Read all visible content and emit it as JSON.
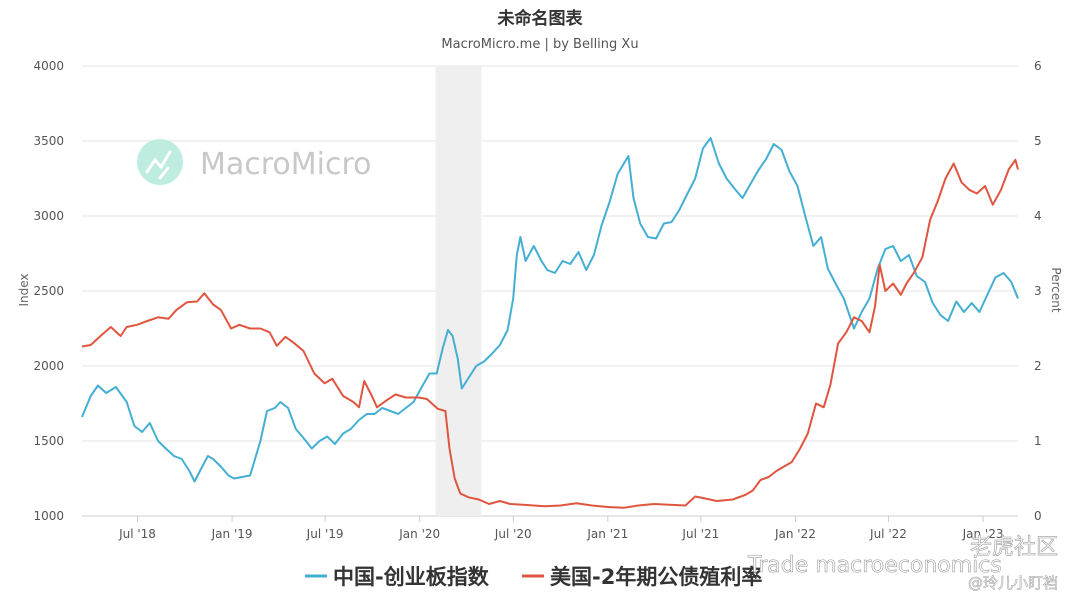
{
  "chart_data": {
    "type": "line",
    "title": "未命名图表",
    "subtitle": "MacroMicro.me | by Belling Xu",
    "watermark": "MacroMicro",
    "watermark_bottom": "Trade macroeconomics",
    "watermark_brand": "老虎社区",
    "watermark_user": "@玲儿小盯裆",
    "y_left": {
      "label": "Index",
      "lim": [
        1000,
        4000
      ],
      "ticks": [
        "1000",
        "1500",
        "2000",
        "2500",
        "3000",
        "3500",
        "4000"
      ]
    },
    "y_right": {
      "label": "Percent",
      "lim": [
        0,
        6
      ],
      "ticks": [
        "0",
        "1",
        "2",
        "3",
        "4",
        "5",
        "6"
      ]
    },
    "x_lim": [
      "2018-03-15",
      "2023-03-10"
    ],
    "x_ticks": [
      {
        "date": "2018-07-01",
        "label": "Jul '18"
      },
      {
        "date": "2019-01-01",
        "label": "Jan '19"
      },
      {
        "date": "2019-07-01",
        "label": "Jul '19"
      },
      {
        "date": "2020-01-01",
        "label": "Jan '20"
      },
      {
        "date": "2020-07-01",
        "label": "Jul '20"
      },
      {
        "date": "2021-01-01",
        "label": "Jan '21"
      },
      {
        "date": "2021-07-01",
        "label": "Jul '21"
      },
      {
        "date": "2022-01-01",
        "label": "Jan '22"
      },
      {
        "date": "2022-07-01",
        "label": "Jul '22"
      },
      {
        "date": "2023-01-01",
        "label": "Jan '23"
      }
    ],
    "shaded_range": [
      "2020-02-01",
      "2020-04-30"
    ],
    "grid": true,
    "legend_position": "bottom",
    "series": [
      {
        "name": "中国-创业板指数",
        "axis": "left",
        "color": "#45aed3",
        "points": [
          [
            "2018-03-15",
            1660
          ],
          [
            "2018-04-01",
            1800
          ],
          [
            "2018-04-15",
            1870
          ],
          [
            "2018-05-01",
            1820
          ],
          [
            "2018-05-20",
            1860
          ],
          [
            "2018-06-10",
            1760
          ],
          [
            "2018-06-25",
            1600
          ],
          [
            "2018-07-10",
            1560
          ],
          [
            "2018-07-25",
            1620
          ],
          [
            "2018-08-10",
            1500
          ],
          [
            "2018-08-25",
            1450
          ],
          [
            "2018-09-10",
            1400
          ],
          [
            "2018-09-25",
            1380
          ],
          [
            "2018-10-10",
            1300
          ],
          [
            "2018-10-20",
            1230
          ],
          [
            "2018-11-01",
            1310
          ],
          [
            "2018-11-15",
            1400
          ],
          [
            "2018-11-25",
            1380
          ],
          [
            "2018-12-10",
            1330
          ],
          [
            "2018-12-25",
            1270
          ],
          [
            "2019-01-05",
            1250
          ],
          [
            "2019-01-20",
            1260
          ],
          [
            "2019-02-05",
            1270
          ],
          [
            "2019-02-25",
            1500
          ],
          [
            "2019-03-10",
            1700
          ],
          [
            "2019-03-25",
            1720
          ],
          [
            "2019-04-05",
            1760
          ],
          [
            "2019-04-20",
            1720
          ],
          [
            "2019-05-05",
            1580
          ],
          [
            "2019-05-20",
            1520
          ],
          [
            "2019-06-05",
            1450
          ],
          [
            "2019-06-20",
            1500
          ],
          [
            "2019-07-05",
            1530
          ],
          [
            "2019-07-20",
            1480
          ],
          [
            "2019-08-05",
            1550
          ],
          [
            "2019-08-20",
            1580
          ],
          [
            "2019-09-05",
            1640
          ],
          [
            "2019-09-20",
            1680
          ],
          [
            "2019-10-05",
            1680
          ],
          [
            "2019-10-20",
            1720
          ],
          [
            "2019-11-05",
            1700
          ],
          [
            "2019-11-20",
            1680
          ],
          [
            "2019-12-05",
            1720
          ],
          [
            "2019-12-20",
            1760
          ],
          [
            "2020-01-05",
            1860
          ],
          [
            "2020-01-20",
            1950
          ],
          [
            "2020-02-03",
            1950
          ],
          [
            "2020-02-15",
            2120
          ],
          [
            "2020-02-25",
            2240
          ],
          [
            "2020-03-05",
            2200
          ],
          [
            "2020-03-15",
            2050
          ],
          [
            "2020-03-23",
            1850
          ],
          [
            "2020-04-05",
            1920
          ],
          [
            "2020-04-20",
            2000
          ],
          [
            "2020-05-05",
            2030
          ],
          [
            "2020-05-20",
            2080
          ],
          [
            "2020-06-05",
            2140
          ],
          [
            "2020-06-20",
            2240
          ],
          [
            "2020-07-01",
            2450
          ],
          [
            "2020-07-08",
            2740
          ],
          [
            "2020-07-15",
            2860
          ],
          [
            "2020-07-25",
            2700
          ],
          [
            "2020-08-10",
            2800
          ],
          [
            "2020-08-25",
            2700
          ],
          [
            "2020-09-05",
            2640
          ],
          [
            "2020-09-20",
            2620
          ],
          [
            "2020-10-05",
            2700
          ],
          [
            "2020-10-20",
            2680
          ],
          [
            "2020-11-05",
            2760
          ],
          [
            "2020-11-20",
            2640
          ],
          [
            "2020-12-05",
            2740
          ],
          [
            "2020-12-20",
            2940
          ],
          [
            "2021-01-05",
            3100
          ],
          [
            "2021-01-20",
            3280
          ],
          [
            "2021-02-10",
            3400
          ],
          [
            "2021-02-20",
            3120
          ],
          [
            "2021-03-05",
            2950
          ],
          [
            "2021-03-20",
            2860
          ],
          [
            "2021-04-05",
            2850
          ],
          [
            "2021-04-20",
            2950
          ],
          [
            "2021-05-05",
            2960
          ],
          [
            "2021-05-20",
            3040
          ],
          [
            "2021-06-05",
            3150
          ],
          [
            "2021-06-20",
            3250
          ],
          [
            "2021-07-05",
            3450
          ],
          [
            "2021-07-20",
            3520
          ],
          [
            "2021-08-05",
            3350
          ],
          [
            "2021-08-20",
            3250
          ],
          [
            "2021-09-05",
            3180
          ],
          [
            "2021-09-20",
            3120
          ],
          [
            "2021-10-05",
            3210
          ],
          [
            "2021-10-20",
            3300
          ],
          [
            "2021-11-05",
            3380
          ],
          [
            "2021-11-20",
            3480
          ],
          [
            "2021-12-05",
            3440
          ],
          [
            "2021-12-20",
            3300
          ],
          [
            "2022-01-05",
            3200
          ],
          [
            "2022-01-20",
            3000
          ],
          [
            "2022-02-05",
            2800
          ],
          [
            "2022-02-20",
            2860
          ],
          [
            "2022-03-05",
            2650
          ],
          [
            "2022-03-20",
            2550
          ],
          [
            "2022-04-05",
            2450
          ],
          [
            "2022-04-25",
            2250
          ],
          [
            "2022-05-10",
            2360
          ],
          [
            "2022-05-25",
            2450
          ],
          [
            "2022-06-10",
            2650
          ],
          [
            "2022-06-25",
            2780
          ],
          [
            "2022-07-10",
            2800
          ],
          [
            "2022-07-25",
            2700
          ],
          [
            "2022-08-10",
            2740
          ],
          [
            "2022-08-25",
            2600
          ],
          [
            "2022-09-10",
            2560
          ],
          [
            "2022-09-25",
            2420
          ],
          [
            "2022-10-10",
            2340
          ],
          [
            "2022-10-25",
            2300
          ],
          [
            "2022-11-10",
            2430
          ],
          [
            "2022-11-25",
            2360
          ],
          [
            "2022-12-10",
            2420
          ],
          [
            "2022-12-25",
            2360
          ],
          [
            "2023-01-10",
            2480
          ],
          [
            "2023-01-25",
            2590
          ],
          [
            "2023-02-10",
            2620
          ],
          [
            "2023-02-25",
            2560
          ],
          [
            "2023-03-10",
            2450
          ]
        ]
      },
      {
        "name": "美国-2年期公债殖利率",
        "axis": "right",
        "color": "#e0553f",
        "points": [
          [
            "2018-03-15",
            2.26
          ],
          [
            "2018-04-01",
            2.28
          ],
          [
            "2018-04-20",
            2.4
          ],
          [
            "2018-05-10",
            2.52
          ],
          [
            "2018-05-29",
            2.4
          ],
          [
            "2018-06-10",
            2.52
          ],
          [
            "2018-06-30",
            2.55
          ],
          [
            "2018-07-20",
            2.6
          ],
          [
            "2018-08-10",
            2.65
          ],
          [
            "2018-08-30",
            2.63
          ],
          [
            "2018-09-15",
            2.75
          ],
          [
            "2018-10-05",
            2.85
          ],
          [
            "2018-10-25",
            2.86
          ],
          [
            "2018-11-08",
            2.97
          ],
          [
            "2018-11-25",
            2.82
          ],
          [
            "2018-12-10",
            2.75
          ],
          [
            "2018-12-30",
            2.5
          ],
          [
            "2019-01-15",
            2.55
          ],
          [
            "2019-02-05",
            2.5
          ],
          [
            "2019-02-25",
            2.5
          ],
          [
            "2019-03-15",
            2.45
          ],
          [
            "2019-03-29",
            2.27
          ],
          [
            "2019-04-15",
            2.39
          ],
          [
            "2019-05-01",
            2.31
          ],
          [
            "2019-05-20",
            2.2
          ],
          [
            "2019-06-10",
            1.9
          ],
          [
            "2019-06-30",
            1.77
          ],
          [
            "2019-07-15",
            1.83
          ],
          [
            "2019-08-05",
            1.6
          ],
          [
            "2019-08-25",
            1.52
          ],
          [
            "2019-09-05",
            1.45
          ],
          [
            "2019-09-15",
            1.8
          ],
          [
            "2019-09-30",
            1.6
          ],
          [
            "2019-10-10",
            1.45
          ],
          [
            "2019-10-30",
            1.55
          ],
          [
            "2019-11-15",
            1.62
          ],
          [
            "2019-12-05",
            1.58
          ],
          [
            "2019-12-30",
            1.58
          ],
          [
            "2020-01-15",
            1.56
          ],
          [
            "2020-02-05",
            1.43
          ],
          [
            "2020-02-20",
            1.4
          ],
          [
            "2020-02-28",
            0.9
          ],
          [
            "2020-03-09",
            0.5
          ],
          [
            "2020-03-20",
            0.3
          ],
          [
            "2020-04-05",
            0.25
          ],
          [
            "2020-04-25",
            0.22
          ],
          [
            "2020-05-15",
            0.16
          ],
          [
            "2020-06-05",
            0.2
          ],
          [
            "2020-06-25",
            0.16
          ],
          [
            "2020-07-20",
            0.15
          ],
          [
            "2020-08-10",
            0.14
          ],
          [
            "2020-09-01",
            0.13
          ],
          [
            "2020-10-01",
            0.14
          ],
          [
            "2020-11-01",
            0.17
          ],
          [
            "2020-12-01",
            0.14
          ],
          [
            "2021-01-01",
            0.12
          ],
          [
            "2021-02-01",
            0.11
          ],
          [
            "2021-03-01",
            0.14
          ],
          [
            "2021-04-01",
            0.16
          ],
          [
            "2021-05-01",
            0.15
          ],
          [
            "2021-06-01",
            0.14
          ],
          [
            "2021-06-20",
            0.26
          ],
          [
            "2021-07-05",
            0.24
          ],
          [
            "2021-08-01",
            0.2
          ],
          [
            "2021-09-01",
            0.22
          ],
          [
            "2021-09-25",
            0.28
          ],
          [
            "2021-10-10",
            0.34
          ],
          [
            "2021-10-25",
            0.48
          ],
          [
            "2021-11-10",
            0.52
          ],
          [
            "2021-11-25",
            0.6
          ],
          [
            "2021-12-10",
            0.66
          ],
          [
            "2021-12-25",
            0.72
          ],
          [
            "2022-01-10",
            0.9
          ],
          [
            "2022-01-25",
            1.1
          ],
          [
            "2022-02-10",
            1.5
          ],
          [
            "2022-02-25",
            1.45
          ],
          [
            "2022-03-10",
            1.75
          ],
          [
            "2022-03-25",
            2.3
          ],
          [
            "2022-04-10",
            2.45
          ],
          [
            "2022-04-25",
            2.65
          ],
          [
            "2022-05-10",
            2.6
          ],
          [
            "2022-05-25",
            2.45
          ],
          [
            "2022-06-05",
            2.8
          ],
          [
            "2022-06-14",
            3.35
          ],
          [
            "2022-06-25",
            3.0
          ],
          [
            "2022-07-10",
            3.1
          ],
          [
            "2022-07-25",
            2.95
          ],
          [
            "2022-08-05",
            3.1
          ],
          [
            "2022-08-20",
            3.25
          ],
          [
            "2022-09-05",
            3.45
          ],
          [
            "2022-09-20",
            3.95
          ],
          [
            "2022-10-05",
            4.2
          ],
          [
            "2022-10-20",
            4.5
          ],
          [
            "2022-11-05",
            4.7
          ],
          [
            "2022-11-20",
            4.45
          ],
          [
            "2022-12-05",
            4.35
          ],
          [
            "2022-12-20",
            4.3
          ],
          [
            "2023-01-05",
            4.4
          ],
          [
            "2023-01-20",
            4.15
          ],
          [
            "2023-02-05",
            4.35
          ],
          [
            "2023-02-20",
            4.62
          ],
          [
            "2023-03-05",
            4.75
          ],
          [
            "2023-03-10",
            4.62
          ]
        ]
      }
    ]
  }
}
